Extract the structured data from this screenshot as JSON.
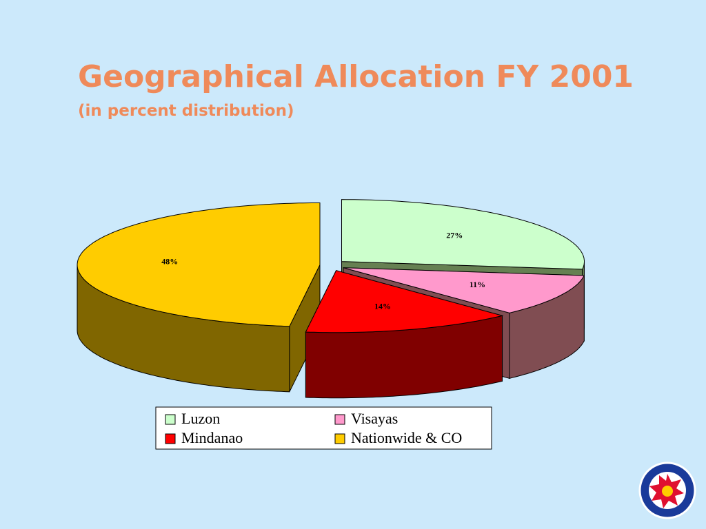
{
  "chart_data": {
    "type": "pie3d",
    "title": "Geographical Allocation FY 2001",
    "subtitle": "(in percent distribution)",
    "categories": [
      "Luzon",
      "Visayas",
      "Mindanao",
      "Nationwide & CO"
    ],
    "values": [
      27,
      11,
      14,
      48
    ],
    "value_labels": [
      "27%",
      "11%",
      "14%",
      "48%"
    ],
    "colors": [
      "#ccffcc",
      "#ff99cc",
      "#ff0000",
      "#ffcc00"
    ],
    "legend": "bottom"
  }
}
